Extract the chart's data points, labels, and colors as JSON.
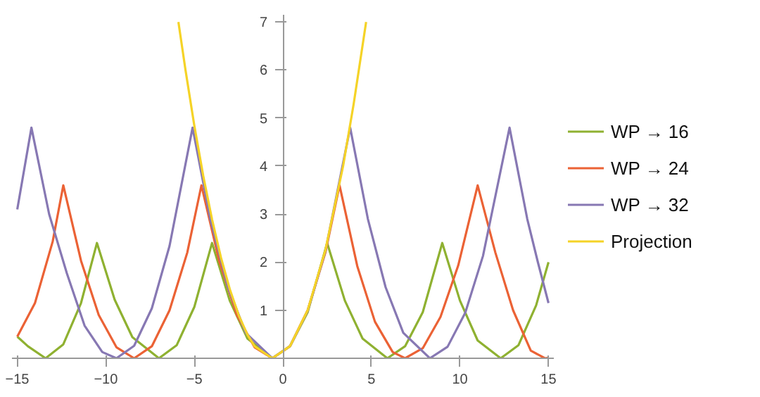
{
  "chart_data": {
    "type": "line",
    "xlim": [
      -15.3,
      15.3
    ],
    "ylim": [
      0,
      7.15
    ],
    "xticks": [
      -15,
      -10,
      -5,
      0,
      5,
      10,
      15
    ],
    "yticks": [
      1,
      2,
      3,
      4,
      5,
      6,
      7
    ],
    "grid": false,
    "legend": "right",
    "marker": "none",
    "line_style": "solid",
    "series": [
      {
        "name": "WP → 16",
        "color": "#8fb131",
        "x": [
          -15,
          -14.4,
          -13.4,
          -12.4,
          -11.4,
          -10.5,
          -9.5,
          -8.5,
          -7.0,
          -6,
          -5,
          -4.0,
          -3,
          -2,
          -0.6,
          0.4,
          1.4,
          2.5,
          3.5,
          4.5,
          5.9,
          6.9,
          7.9,
          9.0,
          10,
          11,
          12.3,
          13.3,
          14.3,
          15
        ],
        "values": [
          0.45,
          0.25,
          0,
          0.29,
          1.15,
          2.4,
          1.22,
          0.44,
          0,
          0.27,
          1.07,
          2.4,
          1.2,
          0.41,
          0,
          0.25,
          0.96,
          2.4,
          1.2,
          0.41,
          0,
          0.25,
          0.96,
          2.4,
          1.2,
          0.37,
          0,
          0.27,
          1.1,
          2.0
        ]
      },
      {
        "name": "WP → 24",
        "color": "#eb6235",
        "x": [
          -15,
          -14,
          -13,
          -12.4,
          -11.4,
          -10.4,
          -9.4,
          -8.4,
          -7.4,
          -6.4,
          -5.4,
          -4.6,
          -3.6,
          -2.6,
          -1.6,
          -0.6,
          0.4,
          1.4,
          2.4,
          3.2,
          4.2,
          5.2,
          6.2,
          6.9,
          7.9,
          8.9,
          9.9,
          11.0,
          12,
          13,
          14,
          14.8,
          15
        ],
        "values": [
          0.45,
          1.15,
          2.43,
          3.6,
          2.03,
          0.9,
          0.23,
          0,
          0.25,
          1.0,
          2.2,
          3.6,
          2.03,
          0.9,
          0.23,
          0,
          0.25,
          1.0,
          2.2,
          3.6,
          1.92,
          0.76,
          0.13,
          0,
          0.21,
          0.86,
          1.93,
          3.6,
          2.2,
          1.0,
          0.16,
          0,
          0.01
        ]
      },
      {
        "name": "WP → 32",
        "color": "#8778b3",
        "x": [
          -15,
          -14.2,
          -13.2,
          -12.2,
          -11.2,
          -10.2,
          -9.4,
          -8.4,
          -7.4,
          -6.4,
          -5.1,
          -4.1,
          -3.1,
          -2.1,
          -0.6,
          0.4,
          1.4,
          2.4,
          3.8,
          4.8,
          5.8,
          6.8,
          8.3,
          9.3,
          10.3,
          11.3,
          12.8,
          13.8,
          14.4,
          15
        ],
        "values": [
          3.1,
          4.8,
          3.0,
          1.77,
          0.68,
          0.13,
          0,
          0.26,
          1.04,
          2.34,
          4.8,
          2.9,
          1.48,
          0.53,
          0,
          0.25,
          0.99,
          2.23,
          4.8,
          2.9,
          1.48,
          0.53,
          0,
          0.24,
          0.95,
          2.13,
          4.8,
          2.9,
          2.0,
          1.15
        ]
      },
      {
        "name": "Projection",
        "color": "#f5d327",
        "x": [
          -5.9,
          -5.5,
          -5,
          -4.5,
          -4,
          -3.5,
          -3,
          -2.5,
          -2,
          -1.6,
          -0.6,
          0.4,
          1.4,
          2.4,
          3.4,
          4.0,
          4.7
        ],
        "values": [
          7.0,
          6.0,
          4.84,
          3.8,
          2.89,
          2.1,
          1.44,
          0.9,
          0.49,
          0.25,
          0,
          0.25,
          1.0,
          2.25,
          4.0,
          5.3,
          7.0
        ]
      }
    ]
  }
}
